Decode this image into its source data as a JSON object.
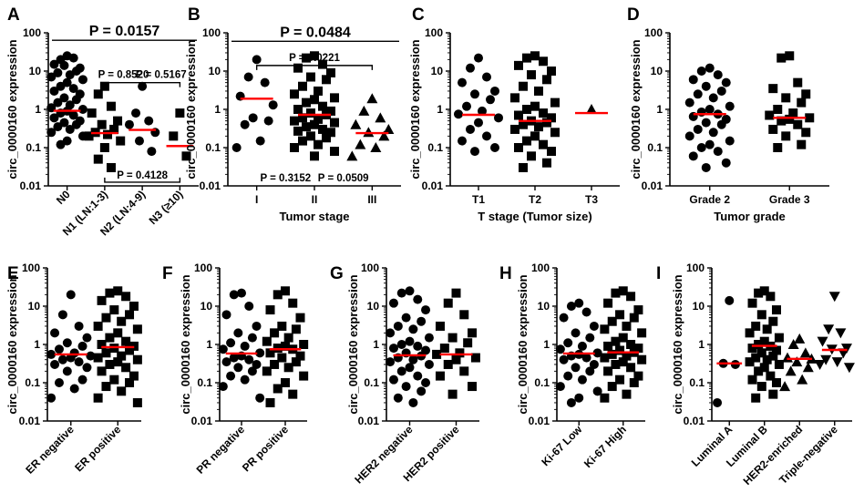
{
  "figure": {
    "colors": {
      "points": "#000000",
      "median": "#ff0000",
      "axis": "#000000"
    }
  },
  "chart_data": [
    {
      "id": "A",
      "letter": "A",
      "type": "scatter",
      "scale": "log",
      "ylim": [
        0.01,
        100
      ],
      "yticks": [
        "100",
        "10",
        "1",
        "0.1",
        "0.01"
      ],
      "ylabel": "circ_0000160 expression",
      "xlabel": "",
      "categories": [
        "N0",
        "N1 (LN:1-3)",
        "N2 (LN:4-9)",
        "N3 (≥10)"
      ],
      "rotate": true,
      "markers": [
        "circle",
        "square",
        "circle",
        "square"
      ],
      "medians": [
        0.92,
        0.24,
        0.29,
        0.11
      ],
      "values": [
        [
          25,
          20,
          22,
          15,
          12,
          14,
          10,
          9,
          8,
          7,
          6,
          5,
          4,
          3.5,
          3,
          2.5,
          2,
          1.8,
          1.5,
          1.3,
          1.1,
          1.0,
          0.9,
          0.8,
          0.7,
          0.6,
          0.5,
          0.45,
          0.4,
          0.35,
          0.3,
          0.25,
          0.2,
          0.15,
          0.12
        ],
        [
          4,
          2.5,
          1.2,
          0.8,
          0.5,
          0.4,
          0.3,
          0.25,
          0.22,
          0.2,
          0.15,
          0.1,
          0.05,
          0.03
        ],
        [
          4,
          0.8,
          0.5,
          0.4,
          0.25,
          0.15,
          0.08
        ],
        [
          0.8,
          0.2,
          0.06
        ]
      ],
      "annotations": [
        {
          "text": "P = 0.0157",
          "from": 0,
          "to": 3,
          "level": 64,
          "big": true
        },
        {
          "text": "P = 0.8520",
          "from": 1,
          "to": 2,
          "level": 5,
          "big": false
        },
        {
          "text": "P = 0.5167",
          "from": 2,
          "to": 3,
          "level": 5,
          "big": false
        },
        {
          "text": "P = 0.4128",
          "from": 1,
          "to": 3,
          "level": 0.0125,
          "big": false,
          "below": true
        }
      ]
    },
    {
      "id": "B",
      "letter": "B",
      "type": "scatter",
      "scale": "log",
      "ylim": [
        0.01,
        100
      ],
      "yticks": [
        "100",
        "10",
        "1",
        "0.1",
        "0.01"
      ],
      "ylabel": "circ_0000160 expression",
      "xlabel": "Tumor stage",
      "categories": [
        "I",
        "II",
        "III"
      ],
      "rotate": false,
      "markers": [
        "circle",
        "square",
        "triangle"
      ],
      "medians": [
        1.9,
        0.72,
        0.24
      ],
      "values": [
        [
          20,
          7,
          5,
          2.2,
          1.3,
          0.6,
          0.5,
          0.4,
          0.15,
          0.1
        ],
        [
          25,
          22,
          15,
          12,
          9,
          7,
          6,
          4,
          3,
          2.5,
          2,
          1.8,
          1.5,
          1.2,
          1,
          0.9,
          0.8,
          0.72,
          0.6,
          0.55,
          0.5,
          0.45,
          0.4,
          0.35,
          0.3,
          0.27,
          0.25,
          0.2,
          0.18,
          0.15,
          0.12,
          0.1,
          0.08,
          0.06
        ],
        [
          1.9,
          0.9,
          0.6,
          0.4,
          0.3,
          0.25,
          0.2,
          0.12,
          0.1,
          0.06
        ]
      ],
      "annotations": [
        {
          "text": "P = 0.0484",
          "from": 0,
          "to": 2,
          "level": 60,
          "big": true
        },
        {
          "text": "P = 0.0221",
          "from": 0,
          "to": 2,
          "level": 14,
          "big": false
        },
        {
          "text": "P = 0.3152",
          "from": 0,
          "to": 1,
          "level": 0.013,
          "big": false,
          "textOnly": true
        },
        {
          "text": "P = 0.0509",
          "from": 1,
          "to": 2,
          "level": 0.013,
          "big": false,
          "textOnly": true
        }
      ]
    },
    {
      "id": "C",
      "letter": "C",
      "type": "scatter",
      "scale": "log",
      "ylim": [
        0.01,
        100
      ],
      "yticks": [
        "100",
        "10",
        "1",
        "0.1",
        "0.01"
      ],
      "ylabel": "circ_0000160 expression",
      "xlabel": "T stage (Tumor size)",
      "categories": [
        "T1",
        "T2",
        "T3"
      ],
      "rotate": false,
      "markers": [
        "circle",
        "square",
        "triangle"
      ],
      "medians": [
        0.72,
        0.5,
        0.8
      ],
      "values": [
        [
          22,
          12,
          7,
          5,
          3,
          2.5,
          1.8,
          1.2,
          0.9,
          0.75,
          0.6,
          0.45,
          0.3,
          0.2,
          0.15,
          0.1,
          0.08
        ],
        [
          25,
          22,
          18,
          14,
          10,
          8,
          6,
          4,
          3,
          2,
          1.5,
          1.2,
          1,
          0.8,
          0.7,
          0.6,
          0.5,
          0.45,
          0.4,
          0.35,
          0.3,
          0.25,
          0.2,
          0.15,
          0.12,
          0.1,
          0.08,
          0.06,
          0.04,
          0.03
        ],
        [
          1.0
        ]
      ],
      "annotations": []
    },
    {
      "id": "D",
      "letter": "D",
      "type": "scatter",
      "scale": "log",
      "ylim": [
        0.01,
        100
      ],
      "yticks": [
        "100",
        "10",
        "1",
        "0.1",
        "0.01"
      ],
      "ylabel": "circ_0000160 expression",
      "xlabel": "Tumor grade",
      "categories": [
        "Grade 2",
        "Grade 3"
      ],
      "rotate": false,
      "markers": [
        "circle",
        "square"
      ],
      "medians": [
        0.75,
        0.6
      ],
      "values": [
        [
          12,
          10,
          8,
          6,
          5,
          4,
          3,
          2.5,
          2,
          1.5,
          1.2,
          1,
          0.85,
          0.75,
          0.65,
          0.55,
          0.45,
          0.4,
          0.3,
          0.25,
          0.2,
          0.15,
          0.12,
          0.1,
          0.08,
          0.06,
          0.04,
          0.03
        ],
        [
          25,
          22,
          5,
          3.5,
          2.5,
          2,
          1.5,
          1,
          0.8,
          0.7,
          0.6,
          0.55,
          0.5,
          0.4,
          0.3,
          0.25,
          0.2,
          0.12,
          0.1
        ]
      ],
      "annotations": []
    },
    {
      "id": "E",
      "letter": "E",
      "type": "scatter",
      "scale": "log",
      "ylim": [
        0.01,
        100
      ],
      "yticks": [
        "100",
        "10",
        "1",
        "0.1",
        "0.01"
      ],
      "ylabel": "circ_0000160 expression",
      "xlabel": "",
      "categories": [
        "ER negative",
        "ER positive"
      ],
      "rotate": true,
      "markers": [
        "circle",
        "square"
      ],
      "medians": [
        0.55,
        0.85
      ],
      "values": [
        [
          20,
          6,
          3,
          2,
          1.5,
          1.1,
          0.9,
          0.75,
          0.6,
          0.55,
          0.5,
          0.45,
          0.4,
          0.35,
          0.3,
          0.25,
          0.2,
          0.12,
          0.1,
          0.07,
          0.04
        ],
        [
          25,
          22,
          18,
          14,
          10,
          8,
          6,
          5,
          4,
          3,
          2.5,
          2,
          1.5,
          1.2,
          1,
          0.9,
          0.8,
          0.7,
          0.6,
          0.5,
          0.45,
          0.4,
          0.35,
          0.3,
          0.25,
          0.2,
          0.15,
          0.12,
          0.1,
          0.08,
          0.06,
          0.04,
          0.03
        ]
      ],
      "annotations": []
    },
    {
      "id": "F",
      "letter": "F",
      "type": "scatter",
      "scale": "log",
      "ylim": [
        0.01,
        100
      ],
      "yticks": [
        "100",
        "10",
        "1",
        "0.1",
        "0.01"
      ],
      "ylabel": "circ_0000160 expression",
      "xlabel": "",
      "categories": [
        "PR negative",
        "PR positive"
      ],
      "rotate": true,
      "markers": [
        "circle",
        "square"
      ],
      "medians": [
        0.58,
        0.75
      ],
      "values": [
        [
          22,
          20,
          10,
          6,
          3,
          2,
          1.5,
          1.1,
          0.9,
          0.75,
          0.6,
          0.5,
          0.45,
          0.4,
          0.35,
          0.3,
          0.25,
          0.2,
          0.15,
          0.12,
          0.08,
          0.04
        ],
        [
          25,
          20,
          12,
          8,
          5,
          3,
          2.5,
          2,
          1.5,
          1.2,
          1,
          0.9,
          0.8,
          0.75,
          0.6,
          0.5,
          0.45,
          0.35,
          0.3,
          0.25,
          0.2,
          0.15,
          0.1,
          0.07,
          0.05,
          0.03
        ]
      ],
      "annotations": []
    },
    {
      "id": "G",
      "letter": "G",
      "type": "scatter",
      "scale": "log",
      "ylim": [
        0.01,
        100
      ],
      "yticks": [
        "100",
        "10",
        "1",
        "0.1",
        "0.01"
      ],
      "ylabel": "circ_0000160 expression",
      "xlabel": "",
      "categories": [
        "HER2 negative",
        "HER2 positive"
      ],
      "rotate": true,
      "markers": [
        "circle",
        "square"
      ],
      "medians": [
        0.52,
        0.55
      ],
      "values": [
        [
          25,
          22,
          15,
          12,
          8,
          5,
          4,
          3,
          2.5,
          2,
          1.5,
          1.2,
          1,
          0.9,
          0.8,
          0.7,
          0.6,
          0.5,
          0.45,
          0.4,
          0.35,
          0.3,
          0.25,
          0.2,
          0.15,
          0.12,
          0.1,
          0.08,
          0.06,
          0.04,
          0.03
        ],
        [
          22,
          12,
          6,
          3,
          2,
          1.5,
          1.1,
          0.8,
          0.6,
          0.55,
          0.45,
          0.4,
          0.3,
          0.2,
          0.15,
          0.08,
          0.05
        ]
      ],
      "annotations": []
    },
    {
      "id": "H",
      "letter": "H",
      "type": "scatter",
      "scale": "log",
      "ylim": [
        0.01,
        100
      ],
      "yticks": [
        "100",
        "10",
        "1",
        "0.1",
        "0.01"
      ],
      "ylabel": "circ_0000160 expression",
      "xlabel": "",
      "categories": [
        "Ki-67 Low",
        "Ki-67 High"
      ],
      "rotate": true,
      "markers": [
        "circle",
        "square"
      ],
      "medians": [
        0.58,
        0.62
      ],
      "values": [
        [
          12,
          10,
          7,
          5,
          3,
          2,
          1.5,
          1.1,
          0.9,
          0.75,
          0.6,
          0.55,
          0.5,
          0.45,
          0.4,
          0.3,
          0.25,
          0.2,
          0.15,
          0.12,
          0.08,
          0.06,
          0.04,
          0.03
        ],
        [
          25,
          22,
          18,
          12,
          8,
          6,
          5,
          4,
          3,
          2.5,
          2,
          1.5,
          1.2,
          1,
          0.9,
          0.8,
          0.7,
          0.62,
          0.55,
          0.5,
          0.45,
          0.4,
          0.35,
          0.3,
          0.25,
          0.2,
          0.15,
          0.12,
          0.1,
          0.08,
          0.05,
          0.04
        ]
      ],
      "annotations": []
    },
    {
      "id": "I",
      "letter": "I",
      "type": "scatter",
      "scale": "log",
      "ylim": [
        0.01,
        100
      ],
      "yticks": [
        "100",
        "10",
        "1",
        "0.1",
        "0.01"
      ],
      "ylabel": "circ_0000160 expression",
      "xlabel": "",
      "categories": [
        "Luminal A",
        "Luminal B",
        "HER2-enriched",
        "Triple-negative"
      ],
      "rotate": true,
      "markers": [
        "circle",
        "square",
        "triangle",
        "invtriangle"
      ],
      "medians": [
        0.32,
        0.92,
        0.42,
        0.72
      ],
      "values": [
        [
          14,
          0.32,
          0.3,
          0.03
        ],
        [
          25,
          22,
          18,
          12,
          8,
          6,
          4,
          3,
          2.5,
          2,
          1.5,
          1.2,
          1,
          0.9,
          0.8,
          0.7,
          0.6,
          0.5,
          0.45,
          0.4,
          0.35,
          0.3,
          0.25,
          0.2,
          0.15,
          0.12,
          0.1,
          0.08,
          0.05,
          0.04
        ],
        [
          1.4,
          1.0,
          0.6,
          0.45,
          0.42,
          0.35,
          0.25,
          0.2,
          0.12,
          0.08
        ],
        [
          18,
          2.5,
          2,
          1.2,
          0.8,
          0.75,
          0.6,
          0.4,
          0.35,
          0.3,
          0.25
        ]
      ],
      "annotations": []
    }
  ]
}
